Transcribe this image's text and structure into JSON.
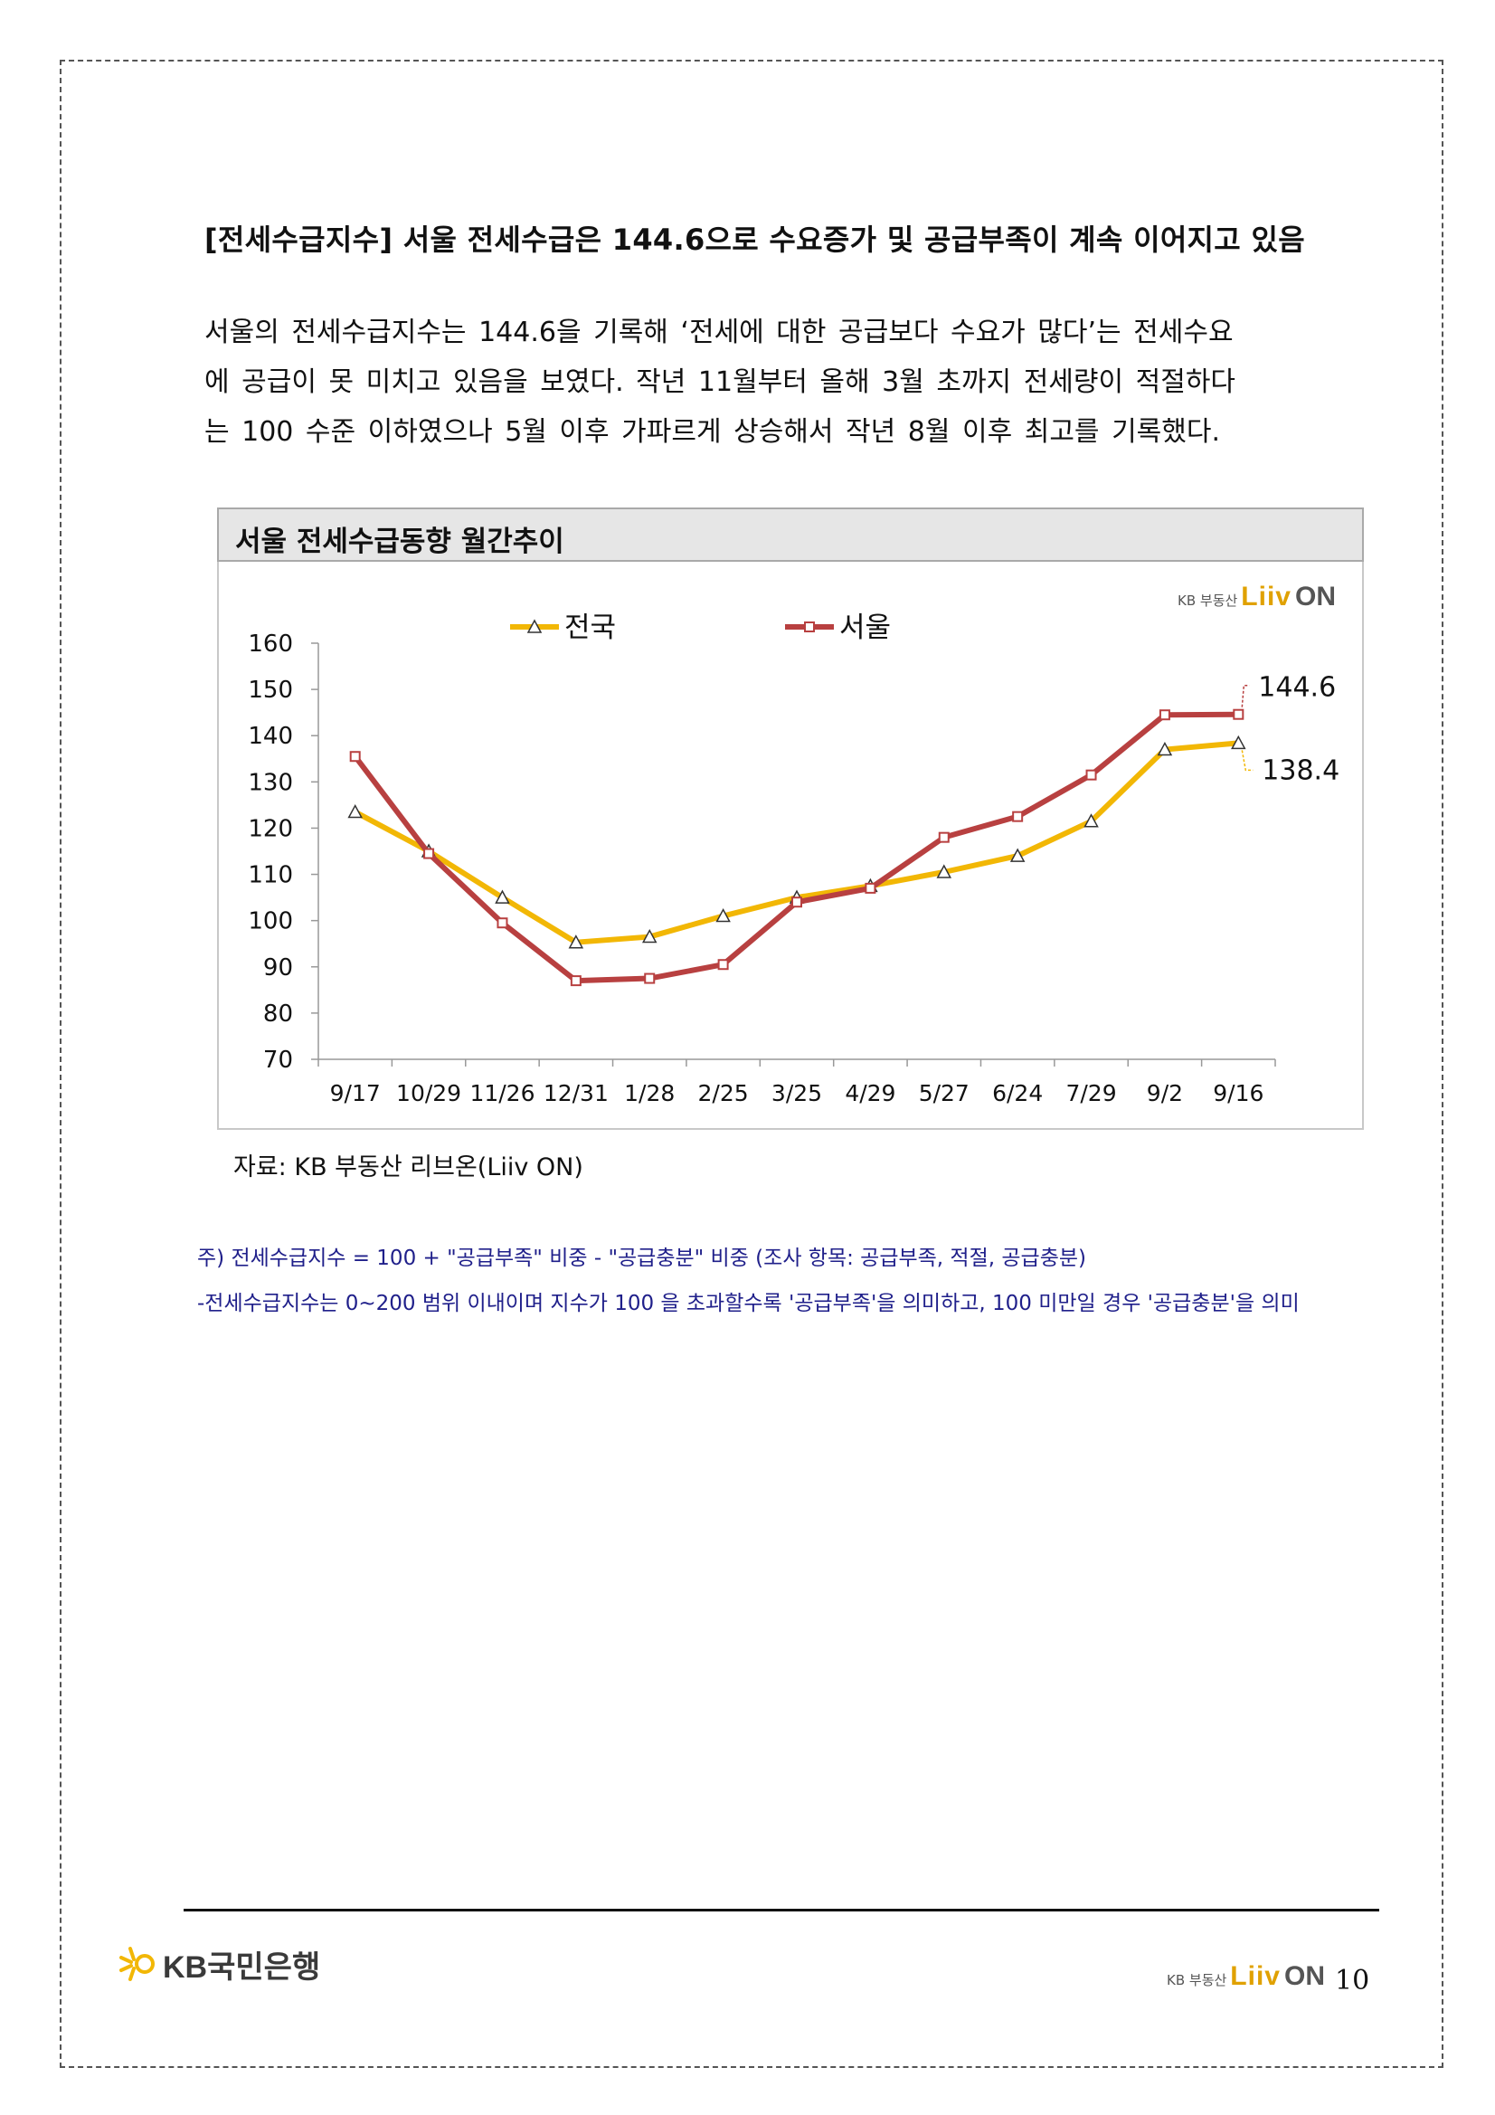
{
  "headline": "[전세수급지수] 서울 전세수급은 144.6으로 수요증가 및 공급부족이 계속 이어지고 있음",
  "paragraph": {
    "line1": "서울의 전세수급지수는 144.6을 기록해 ‘전세에 대한 공급보다 수요가 많다’는 전세수요",
    "line2": "에 공급이 못 미치고 있음을 보였다. 작년 11월부터 올해 3월 초까지 전세량이 적절하다",
    "line3": "는 100 수준 이하였으나 5월 이후 가파르게 상승해서 작년 8월 이후 최고를 기록했다."
  },
  "chart_panel": {
    "title": "서울 전세수급동향 월간추이",
    "logo_small": "KB 부동산",
    "logo_word": "Liiv",
    "logo_on": "ON"
  },
  "chart_data": {
    "type": "line",
    "categories": [
      "9/17",
      "10/29",
      "11/26",
      "12/31",
      "1/28",
      "2/25",
      "3/25",
      "4/29",
      "5/27",
      "6/24",
      "7/29",
      "9/2",
      "9/16"
    ],
    "series": [
      {
        "name": "전국",
        "color": "#f2b705",
        "marker": "triangle",
        "values": [
          123.5,
          115.0,
          105.0,
          95.3,
          96.5,
          101.0,
          105.0,
          107.5,
          110.5,
          114.0,
          121.5,
          137.0,
          138.4
        ]
      },
      {
        "name": "서울",
        "color": "#b84040",
        "marker": "square",
        "values": [
          135.5,
          114.5,
          99.5,
          87.0,
          87.5,
          90.5,
          104.0,
          107.0,
          118.0,
          122.5,
          131.5,
          144.5,
          144.6
        ]
      }
    ],
    "yticks": [
      "160",
      "150",
      "140",
      "130",
      "120",
      "110",
      "100",
      "90",
      "80",
      "70"
    ],
    "ylim": [
      70,
      160
    ],
    "end_labels": [
      "138.4",
      "144.6"
    ],
    "legend_position": "top",
    "grid": false
  },
  "source_text": "자료: KB 부동산 리브온(Liiv ON)",
  "notes": {
    "note1": "주) 전세수급지수 = 100 + \"공급부족\" 비중 - \"공급충분\" 비중  (조사 항목: 공급부족, 적절, 공급충분)",
    "note2": "-전세수급지수는 0~200 범위 이내이며 지수가 100 을 초과할수록 '공급부족'을 의미하고, 100 미만일 경우 '공급충분'을 의미"
  },
  "footer": {
    "bank_name": "KB국민은행",
    "logo_small": "KB 부동산",
    "logo_word": "Liiv",
    "logo_on": "ON",
    "page_number": "10"
  },
  "icons": {
    "bank_logo": "kb-star-icon",
    "liiv_logo": "liiv-house-icon"
  }
}
